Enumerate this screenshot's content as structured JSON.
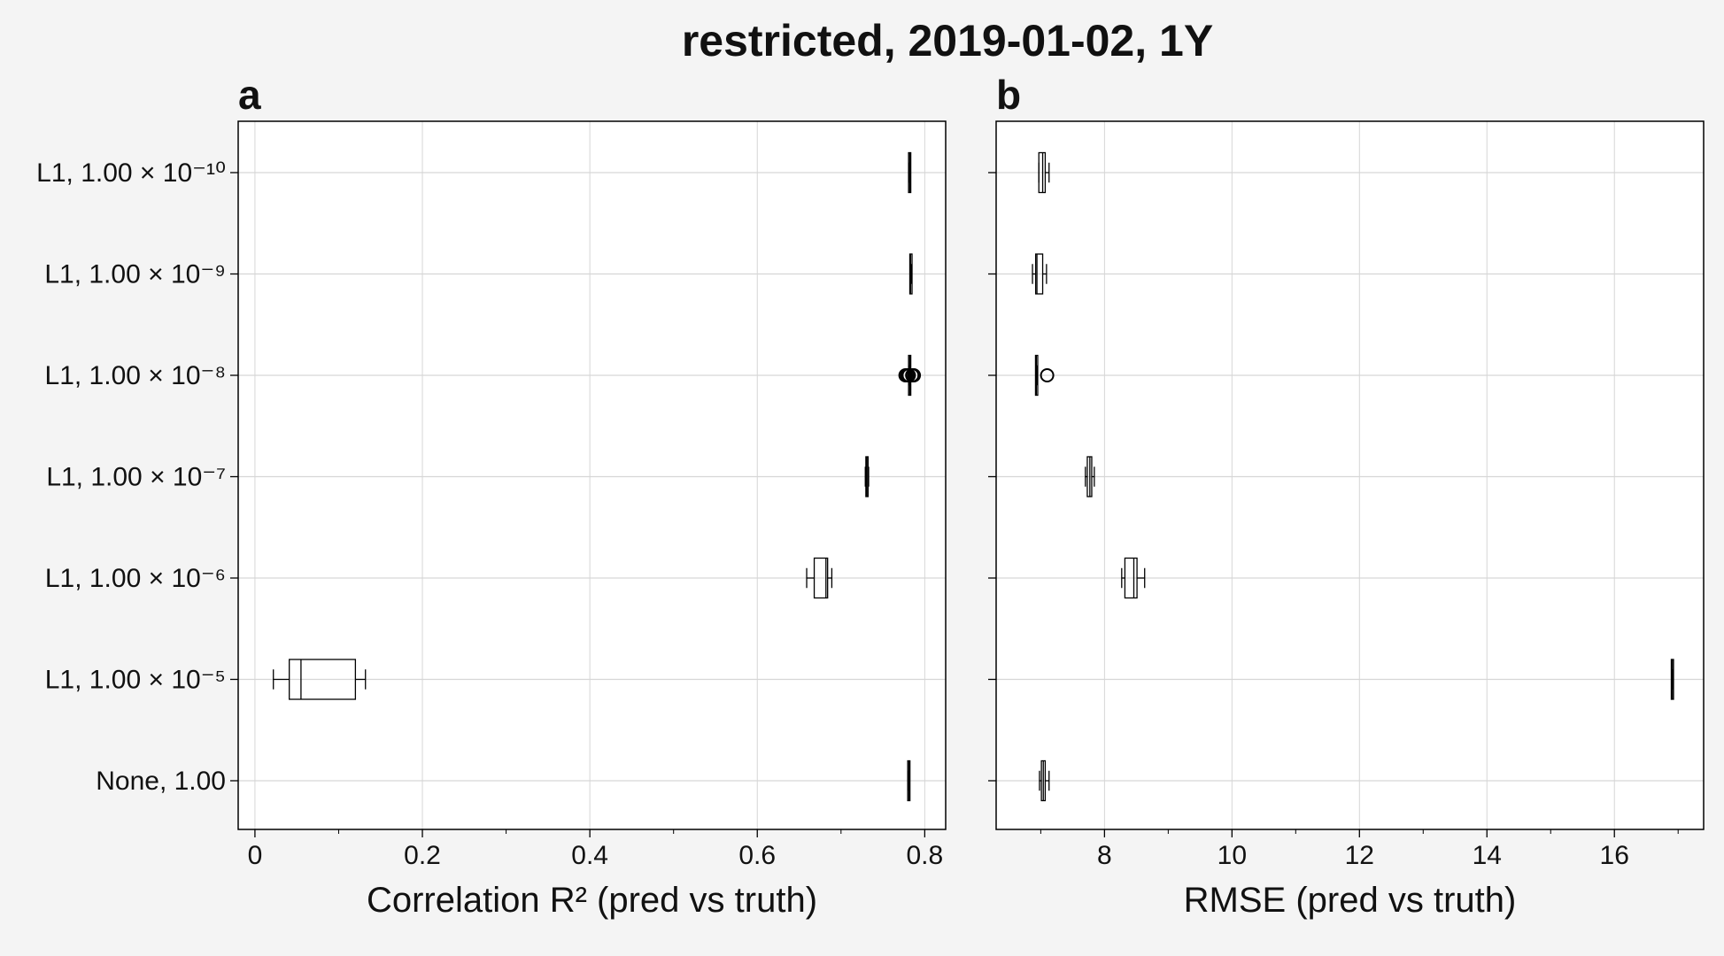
{
  "figure": {
    "title": "restricted, 2019-01-02, 1Y",
    "background": "#f4f4f4",
    "axes_face": "#ffffff",
    "grid_color": "#d6d6d6",
    "line_color": "#000000"
  },
  "categories": [
    "L1, 1.00 × 10⁻¹⁰",
    "L1, 1.00 × 10⁻⁹",
    "L1, 1.00 × 10⁻⁸",
    "L1, 1.00 × 10⁻⁷",
    "L1, 1.00 × 10⁻⁶",
    "L1, 1.00 × 10⁻⁵",
    "None, 1.00"
  ],
  "chart_data": [
    {
      "panel": "a",
      "type": "boxplot",
      "orientation": "horizontal",
      "title": "a",
      "xlabel": "Correlation R² (pred vs truth)",
      "ylabel": "",
      "xlim": [
        -0.02,
        0.825
      ],
      "xticks": [
        0,
        0.2,
        0.4,
        0.6,
        0.8
      ],
      "xtick_labels": [
        "0",
        "0.2",
        "0.4",
        "0.6",
        "0.8"
      ],
      "grid": true,
      "boxes": [
        {
          "category": "L1, 1.00 × 10⁻¹⁰",
          "whislo": 0.781,
          "q1": 0.781,
          "med": 0.782,
          "q3": 0.783,
          "whishi": 0.783,
          "fliers": []
        },
        {
          "category": "L1, 1.00 × 10⁻⁹",
          "whislo": 0.783,
          "q1": 0.783,
          "med": 0.783,
          "q3": 0.784,
          "whishi": 0.784,
          "fliers": []
        },
        {
          "category": "L1, 1.00 × 10⁻⁸",
          "whislo": 0.782,
          "q1": 0.782,
          "med": 0.782,
          "q3": 0.782,
          "whishi": 0.782,
          "fliers": [
            0.777,
            0.779,
            0.781,
            0.785,
            0.787
          ]
        },
        {
          "category": "L1, 1.00 × 10⁻⁷",
          "whislo": 0.729,
          "q1": 0.73,
          "med": 0.731,
          "q3": 0.732,
          "whishi": 0.733,
          "fliers": []
        },
        {
          "category": "L1, 1.00 × 10⁻⁶",
          "whislo": 0.659,
          "q1": 0.668,
          "med": 0.682,
          "q3": 0.684,
          "whishi": 0.689,
          "fliers": []
        },
        {
          "category": "L1, 1.00 × 10⁻⁵",
          "whislo": 0.022,
          "q1": 0.041,
          "med": 0.055,
          "q3": 0.12,
          "whishi": 0.132,
          "fliers": []
        },
        {
          "category": "None, 1.00",
          "whislo": 0.781,
          "q1": 0.781,
          "med": 0.781,
          "q3": 0.781,
          "whishi": 0.781,
          "fliers": []
        }
      ]
    },
    {
      "panel": "b",
      "type": "boxplot",
      "orientation": "horizontal",
      "title": "b",
      "xlabel": "RMSE (pred vs truth)",
      "ylabel": "",
      "xlim": [
        6.3,
        17.4
      ],
      "xticks": [
        8,
        10,
        12,
        14,
        16
      ],
      "xtick_labels": [
        "8",
        "10",
        "12",
        "14",
        "16"
      ],
      "grid": true,
      "boxes": [
        {
          "category": "L1, 1.00 × 10⁻¹⁰",
          "whislo": 6.97,
          "q1": 6.97,
          "med": 7.03,
          "q3": 7.07,
          "whishi": 7.13,
          "fliers": []
        },
        {
          "category": "L1, 1.00 × 10⁻⁹",
          "whislo": 6.87,
          "q1": 6.92,
          "med": 6.94,
          "q3": 7.03,
          "whishi": 7.09,
          "fliers": []
        },
        {
          "category": "L1, 1.00 × 10⁻⁸",
          "whislo": 6.93,
          "q1": 6.93,
          "med": 6.93,
          "q3": 6.94,
          "whishi": 6.94,
          "fliers": [
            7.1
          ]
        },
        {
          "category": "L1, 1.00 × 10⁻⁷",
          "whislo": 7.7,
          "q1": 7.73,
          "med": 7.77,
          "q3": 7.8,
          "whishi": 7.84,
          "fliers": []
        },
        {
          "category": "L1, 1.00 × 10⁻⁶",
          "whislo": 8.27,
          "q1": 8.32,
          "med": 8.46,
          "q3": 8.51,
          "whishi": 8.63,
          "fliers": []
        },
        {
          "category": "L1, 1.00 × 10⁻⁵",
          "whislo": 16.91,
          "q1": 16.91,
          "med": 16.91,
          "q3": 16.91,
          "whishi": 16.91,
          "fliers": []
        },
        {
          "category": "None, 1.00",
          "whislo": 6.98,
          "q1": 7.01,
          "med": 7.04,
          "q3": 7.07,
          "whishi": 7.13,
          "fliers": []
        }
      ]
    }
  ]
}
